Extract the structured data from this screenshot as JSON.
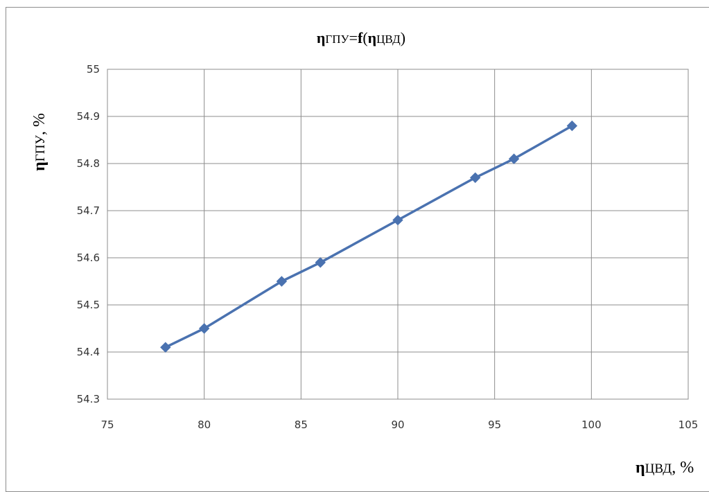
{
  "chart_data": {
    "type": "line",
    "title_parts": {
      "eta1": "η",
      "sub1": "ГПУ",
      "eq": "=",
      "f": "f",
      "open": "(",
      "eta2": "η",
      "sub2": "ЦВД",
      "close": ")"
    },
    "xlabel_parts": {
      "eta": "η",
      "sub": "ЦВД",
      "unit": ", %"
    },
    "ylabel_parts": {
      "eta": "η",
      "sub": "ГПУ",
      "unit": ", %"
    },
    "x_ticks": [
      "75",
      "80",
      "85",
      "90",
      "95",
      "100",
      "105"
    ],
    "y_ticks": [
      "54.3",
      "54.4",
      "54.5",
      "54.6",
      "54.7",
      "54.8",
      "54.9",
      "55"
    ],
    "xlim": [
      75,
      105
    ],
    "ylim": [
      54.3,
      55.0
    ],
    "grid": true,
    "series": [
      {
        "x": [
          78,
          80,
          84,
          86,
          90,
          94,
          96,
          99
        ],
        "y": [
          54.41,
          54.45,
          54.55,
          54.59,
          54.68,
          54.77,
          54.81,
          54.88
        ],
        "color": "#4a72b0",
        "marker": "diamond"
      }
    ]
  }
}
